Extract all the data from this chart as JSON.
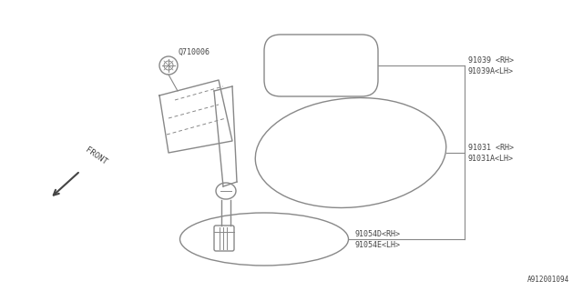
{
  "bg_color": "#ffffff",
  "line_color": "#888888",
  "text_color": "#444444",
  "footnote": "A912001094",
  "label_91039_rh": "91039 <RH>",
  "label_91039a_lh": "91039A<LH>",
  "label_91031_rh": "91031 <RH>",
  "label_91031a_lh": "91031A<LH>",
  "label_91054d_rh": "91054D<RH>",
  "label_91054e_lh": "91054E<LH>",
  "label_q710006": "Q710006",
  "label_front": "FRONT"
}
